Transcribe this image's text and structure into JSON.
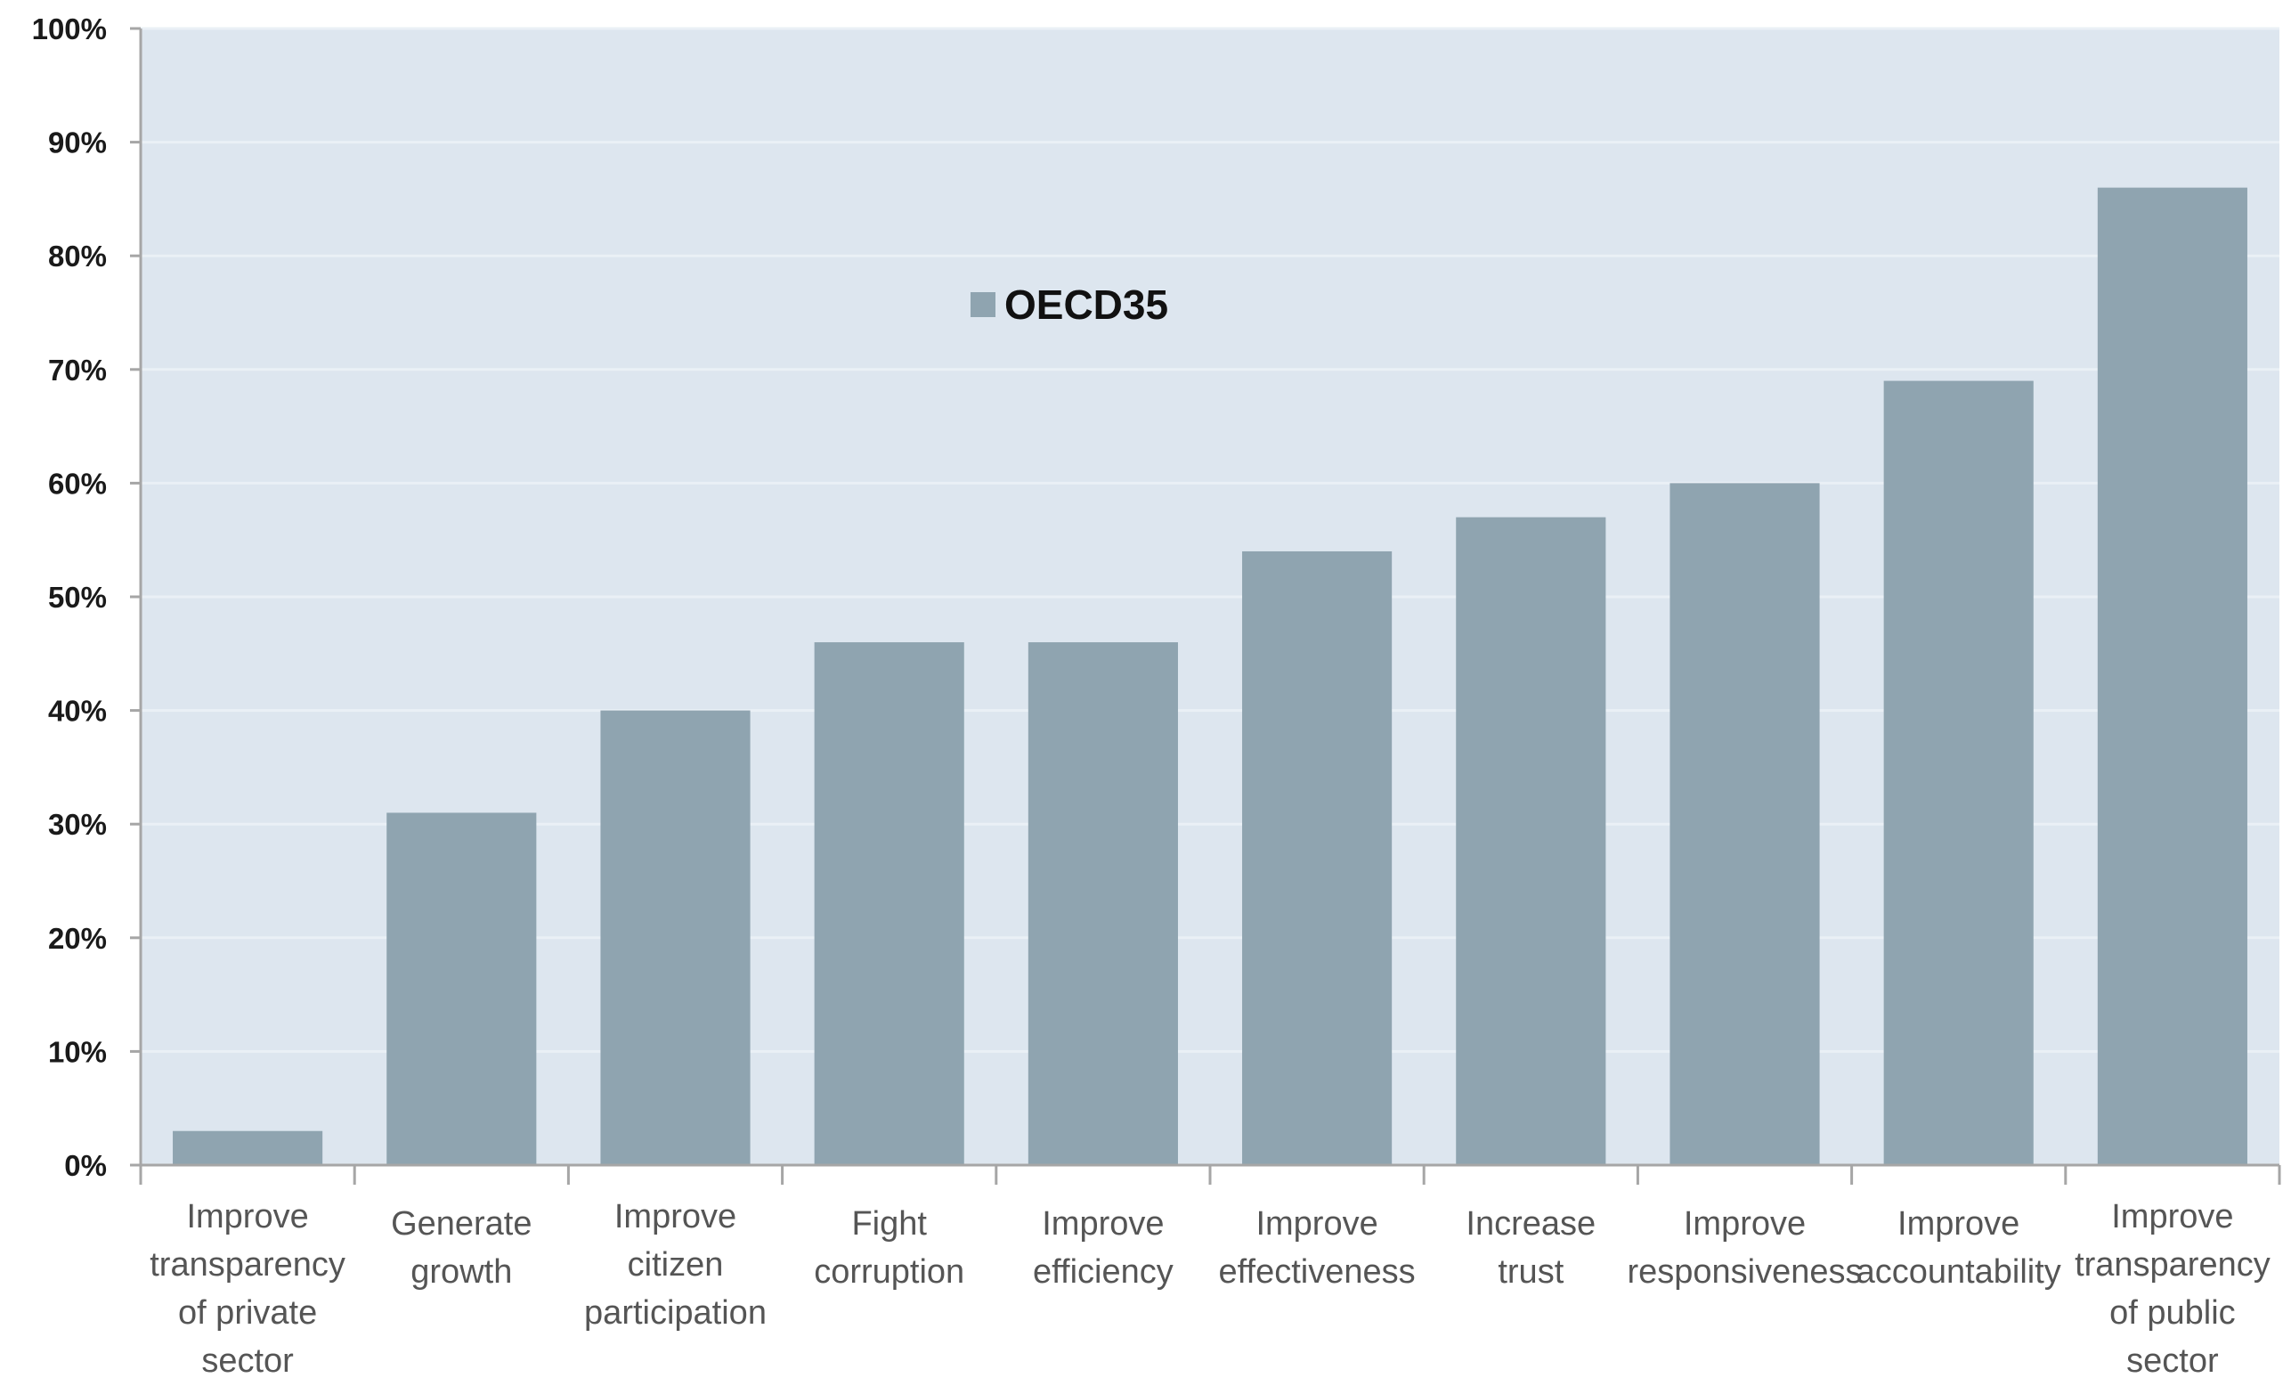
{
  "chart_data": {
    "type": "bar",
    "categories": [
      "Improve transparency of private sector",
      "Generate growth",
      "Improve citizen participation",
      "Fight corruption",
      "Improve efficiency",
      "Improve effectiveness",
      "Increase trust",
      "Improve responsiveness",
      "Improve accountability",
      "Improve transparency of public sector"
    ],
    "category_lines": [
      [
        "Improve",
        "transparency",
        "of private",
        "sector"
      ],
      [
        "Generate",
        "growth"
      ],
      [
        "Improve",
        "citizen",
        "participation"
      ],
      [
        "Fight",
        "corruption"
      ],
      [
        "Improve",
        "efficiency"
      ],
      [
        "Improve",
        "effectiveness"
      ],
      [
        "Increase",
        "trust"
      ],
      [
        "Improve",
        "responsiveness"
      ],
      [
        "Improve",
        "accountability"
      ],
      [
        "Improve",
        "transparency",
        "of public",
        "sector"
      ]
    ],
    "series": [
      {
        "name": "OECD35",
        "values": [
          3,
          31,
          40,
          46,
          46,
          54,
          57,
          60,
          69,
          86
        ]
      }
    ],
    "ylim": [
      0,
      100
    ],
    "yticks": [
      0,
      10,
      20,
      30,
      40,
      50,
      60,
      70,
      80,
      90,
      100
    ],
    "ytick_labels": [
      "0%",
      "10%",
      "20%",
      "30%",
      "40%",
      "50%",
      "60%",
      "70%",
      "80%",
      "90%",
      "100%"
    ],
    "grid": true,
    "legend": "top-center",
    "title": "",
    "xlabel": "",
    "ylabel": "",
    "colors": {
      "bar": "#8fa4b0",
      "plot_background": "#dde6ef",
      "gridline": "#eaf0f6",
      "axis": "#a6a6a6"
    }
  }
}
